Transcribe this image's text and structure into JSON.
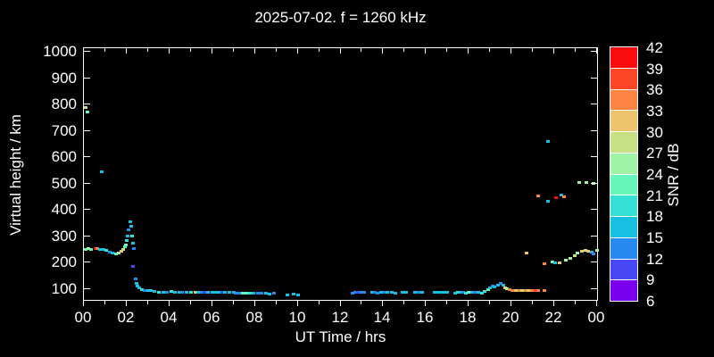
{
  "window": {
    "background": "#000000",
    "foreground": "#ffffff"
  },
  "chart_data": {
    "type": "scatter",
    "title": "2025-07-02. f = 1260 kHz",
    "xlabel": "UT Time / hrs",
    "ylabel": "Virtual height / km",
    "xlim": [
      0,
      24
    ],
    "ylim": [
      55,
      1015
    ],
    "x_tick_hours": [
      0,
      2,
      4,
      6,
      8,
      10,
      12,
      14,
      16,
      18,
      20,
      22,
      24
    ],
    "x_tick_labels": [
      "00",
      "02",
      "04",
      "06",
      "08",
      "10",
      "12",
      "14",
      "16",
      "18",
      "20",
      "22",
      "00"
    ],
    "x_minor_every_hours": 1,
    "y_ticks_km": [
      100,
      200,
      300,
      400,
      500,
      600,
      700,
      800,
      900,
      1000
    ],
    "grid": false,
    "colorbar": {
      "label": "SNR / dB",
      "ticks": [
        6,
        9,
        12,
        15,
        18,
        21,
        24,
        27,
        30,
        33,
        36,
        39,
        42
      ],
      "bin_min": 6,
      "bin_size": 3,
      "colors_low_to_high": [
        "#7b00f0",
        "#4847f5",
        "#268af0",
        "#17c0e0",
        "#36e0d5",
        "#66f5ba",
        "#9ef4a4",
        "#c7e086",
        "#edc36e",
        "#fc8544",
        "#fc4628",
        "#fc0d0d"
      ]
    },
    "points_hour_km_snr": [
      [
        0.08,
        788,
        28
      ],
      [
        0.16,
        772,
        22
      ],
      [
        0.08,
        250,
        23
      ],
      [
        0.2,
        252,
        24
      ],
      [
        0.35,
        248,
        21
      ],
      [
        0.55,
        253,
        40
      ],
      [
        0.63,
        252,
        34
      ],
      [
        0.75,
        250,
        17
      ],
      [
        0.9,
        248,
        17
      ],
      [
        1.05,
        246,
        18
      ],
      [
        1.2,
        238,
        13
      ],
      [
        1.35,
        234,
        16
      ],
      [
        1.5,
        231,
        22
      ],
      [
        1.62,
        236,
        25
      ],
      [
        1.75,
        240,
        31
      ],
      [
        1.85,
        248,
        27
      ],
      [
        1.9,
        258,
        23
      ],
      [
        0.85,
        545,
        17
      ],
      [
        1.95,
        265,
        22
      ],
      [
        2.0,
        282,
        18
      ],
      [
        2.05,
        300,
        17
      ],
      [
        2.1,
        322,
        13
      ],
      [
        2.15,
        352,
        17
      ],
      [
        2.2,
        338,
        15
      ],
      [
        2.25,
        300,
        19
      ],
      [
        2.3,
        272,
        15
      ],
      [
        2.35,
        252,
        13
      ],
      [
        2.3,
        185,
        11
      ],
      [
        2.42,
        135,
        13
      ],
      [
        2.45,
        120,
        16
      ],
      [
        2.5,
        108,
        15
      ],
      [
        2.6,
        102,
        17
      ],
      [
        2.72,
        97,
        18
      ],
      [
        2.85,
        94,
        14
      ],
      [
        3.0,
        92,
        16
      ],
      [
        3.15,
        91,
        17
      ],
      [
        3.3,
        89,
        15
      ],
      [
        3.5,
        87,
        19
      ],
      [
        3.7,
        85,
        16
      ],
      [
        3.9,
        87,
        14
      ],
      [
        4.1,
        89,
        20
      ],
      [
        4.25,
        87,
        17
      ],
      [
        4.45,
        86,
        16
      ],
      [
        4.6,
        85,
        13
      ],
      [
        4.8,
        86,
        17
      ],
      [
        5.0,
        85,
        18
      ],
      [
        5.2,
        85,
        31
      ],
      [
        5.35,
        86,
        16
      ],
      [
        5.5,
        86,
        13
      ],
      [
        5.65,
        84,
        11
      ],
      [
        5.8,
        85,
        16
      ],
      [
        6.0,
        86,
        17
      ],
      [
        6.15,
        85,
        15
      ],
      [
        6.3,
        84,
        17
      ],
      [
        6.45,
        85,
        10
      ],
      [
        6.6,
        85,
        16
      ],
      [
        6.8,
        84,
        17
      ],
      [
        7.0,
        86,
        15
      ],
      [
        7.1,
        83,
        13
      ],
      [
        7.25,
        82,
        14
      ],
      [
        7.45,
        81,
        21
      ],
      [
        7.6,
        83,
        23
      ],
      [
        7.75,
        81,
        19
      ],
      [
        7.95,
        83,
        16
      ],
      [
        8.15,
        81,
        14
      ],
      [
        8.3,
        82,
        12
      ],
      [
        8.5,
        81,
        16
      ],
      [
        8.7,
        79,
        15
      ],
      [
        8.9,
        81,
        13
      ],
      [
        9.5,
        77,
        15
      ],
      [
        9.8,
        79,
        16
      ],
      [
        10.0,
        76,
        17
      ],
      [
        12.55,
        83,
        12
      ],
      [
        12.7,
        86,
        13
      ],
      [
        12.8,
        85,
        11
      ],
      [
        12.95,
        87,
        14
      ],
      [
        13.1,
        85,
        12
      ],
      [
        13.5,
        84,
        16
      ],
      [
        13.62,
        86,
        13
      ],
      [
        13.75,
        83,
        12
      ],
      [
        13.9,
        85,
        15
      ],
      [
        14.05,
        84,
        13
      ],
      [
        14.2,
        86,
        16
      ],
      [
        14.4,
        85,
        16
      ],
      [
        14.55,
        83,
        17
      ],
      [
        14.9,
        84,
        16
      ],
      [
        15.05,
        85,
        15
      ],
      [
        15.5,
        84,
        17
      ],
      [
        15.65,
        86,
        13
      ],
      [
        15.8,
        85,
        16
      ],
      [
        16.4,
        85,
        15
      ],
      [
        16.5,
        85,
        16
      ],
      [
        16.62,
        85,
        16
      ],
      [
        16.75,
        85,
        17
      ],
      [
        16.88,
        85,
        16
      ],
      [
        17.0,
        85,
        17
      ],
      [
        17.35,
        83,
        17
      ],
      [
        17.5,
        85,
        19
      ],
      [
        17.62,
        84,
        16
      ],
      [
        17.75,
        86,
        14
      ],
      [
        17.88,
        83,
        18
      ],
      [
        18.0,
        85,
        22
      ],
      [
        18.15,
        84,
        17
      ],
      [
        18.3,
        86,
        13
      ],
      [
        18.45,
        85,
        16
      ],
      [
        18.6,
        83,
        19
      ],
      [
        18.75,
        90,
        18
      ],
      [
        18.9,
        97,
        21
      ],
      [
        19.0,
        102,
        17
      ],
      [
        19.1,
        110,
        14
      ],
      [
        19.2,
        105,
        17
      ],
      [
        19.35,
        113,
        16
      ],
      [
        19.5,
        119,
        13
      ],
      [
        19.6,
        112,
        15
      ],
      [
        19.7,
        104,
        31
      ],
      [
        19.8,
        99,
        25
      ],
      [
        19.9,
        96,
        34
      ],
      [
        20.05,
        93,
        34
      ],
      [
        20.2,
        91,
        31
      ],
      [
        20.35,
        93,
        34
      ],
      [
        20.5,
        91,
        28
      ],
      [
        20.65,
        92,
        34
      ],
      [
        20.8,
        91,
        31
      ],
      [
        20.95,
        93,
        34
      ],
      [
        21.1,
        91,
        37
      ],
      [
        21.25,
        92,
        34
      ],
      [
        21.55,
        91,
        34
      ],
      [
        21.7,
        660,
        17
      ],
      [
        21.25,
        452,
        33
      ],
      [
        21.7,
        432,
        17
      ],
      [
        22.1,
        445,
        40
      ],
      [
        22.35,
        455,
        17
      ],
      [
        22.45,
        448,
        34
      ],
      [
        23.15,
        502,
        26
      ],
      [
        23.5,
        503,
        26
      ],
      [
        23.85,
        501,
        25
      ],
      [
        20.7,
        236,
        31
      ],
      [
        21.55,
        194,
        34
      ],
      [
        21.9,
        200,
        22
      ],
      [
        22.05,
        196,
        17
      ],
      [
        22.25,
        198,
        31
      ],
      [
        22.55,
        206,
        25
      ],
      [
        22.75,
        216,
        26
      ],
      [
        22.95,
        226,
        27
      ],
      [
        23.1,
        234,
        26
      ],
      [
        23.3,
        241,
        31
      ],
      [
        23.45,
        244,
        28
      ],
      [
        23.6,
        242,
        31
      ],
      [
        23.75,
        239,
        17
      ],
      [
        23.85,
        233,
        13
      ],
      [
        23.98,
        244,
        24
      ]
    ]
  }
}
